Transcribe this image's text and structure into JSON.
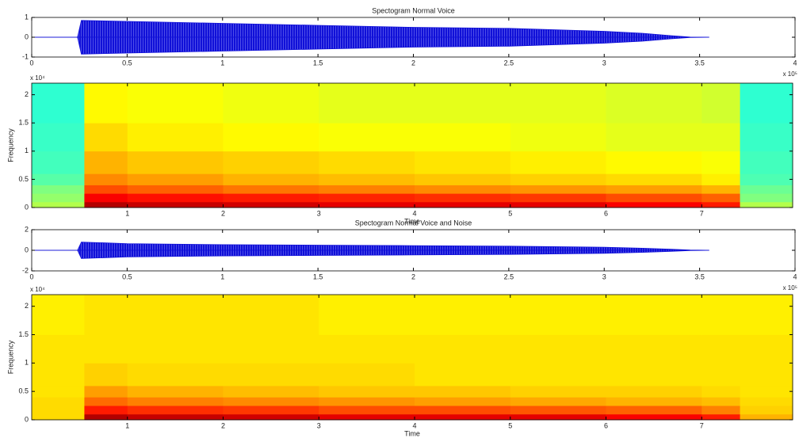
{
  "chart_data": [
    {
      "type": "waveform",
      "title": "Spectogram Normal Voice",
      "x_exponent_label": "x 10⁵",
      "x": [
        0,
        0.24,
        0.26,
        0.5,
        1,
        1.5,
        2,
        2.5,
        3,
        3.2,
        3.35,
        3.45,
        3.55
      ],
      "values": [
        0,
        0,
        0.85,
        0.8,
        0.7,
        0.6,
        0.5,
        0.45,
        0.3,
        0.2,
        0.08,
        0.01,
        0
      ],
      "color": "#1010d8",
      "xlim": [
        0,
        4
      ],
      "xticks": [
        0,
        0.5,
        1,
        1.5,
        2,
        2.5,
        3,
        3.5,
        4
      ],
      "ylim": [
        -1,
        1
      ],
      "yticks": [
        -1,
        0,
        1
      ],
      "grid": false
    },
    {
      "type": "spectrogram",
      "xlabel": "Time",
      "ylabel": "Frequency",
      "y_exponent_label": "x 10⁴",
      "x": [
        0,
        0.55,
        1,
        2,
        3,
        4,
        5,
        6,
        7,
        7.4,
        7.95
      ],
      "y": [
        0,
        0.1,
        0.25,
        0.4,
        0.6,
        1,
        1.5,
        2.205
      ],
      "values": [
        [
          0.55,
          0.95,
          0.93,
          0.92,
          0.9,
          0.9,
          0.9,
          0.88,
          0.85,
          0.55
        ],
        [
          0.52,
          0.88,
          0.86,
          0.85,
          0.84,
          0.83,
          0.82,
          0.8,
          0.78,
          0.5
        ],
        [
          0.5,
          0.8,
          0.78,
          0.76,
          0.75,
          0.74,
          0.73,
          0.72,
          0.7,
          0.48
        ],
        [
          0.46,
          0.74,
          0.72,
          0.7,
          0.69,
          0.68,
          0.67,
          0.66,
          0.64,
          0.45
        ],
        [
          0.44,
          0.7,
          0.68,
          0.67,
          0.66,
          0.65,
          0.64,
          0.63,
          0.62,
          0.44
        ],
        [
          0.43,
          0.66,
          0.64,
          0.63,
          0.62,
          0.62,
          0.61,
          0.6,
          0.6,
          0.43
        ],
        [
          0.42,
          0.63,
          0.62,
          0.61,
          0.6,
          0.6,
          0.6,
          0.59,
          0.58,
          0.42
        ]
      ],
      "clim": [
        0,
        1
      ],
      "colormap": "jet",
      "xlim": [
        0,
        7.95
      ],
      "xticks": [
        1,
        2,
        3,
        4,
        5,
        6,
        7
      ],
      "ylim": [
        0,
        2.205
      ],
      "yticks": [
        0,
        0.5,
        1,
        1.5,
        2
      ],
      "grid": false
    },
    {
      "type": "waveform",
      "title": "Spectogram Normal Voice and Noise",
      "x_exponent_label": "x 10⁵",
      "x": [
        0,
        0.24,
        0.26,
        0.5,
        1,
        1.5,
        2,
        2.5,
        3,
        3.2,
        3.35,
        3.45,
        3.55
      ],
      "values": [
        0,
        0,
        0.8,
        0.65,
        0.55,
        0.5,
        0.45,
        0.4,
        0.3,
        0.2,
        0.1,
        0.02,
        0
      ],
      "color": "#1010d8",
      "xlim": [
        0,
        4
      ],
      "xticks": [
        0,
        0.5,
        1,
        1.5,
        2,
        2.5,
        3,
        3.5,
        4
      ],
      "ylim": [
        -2,
        2
      ],
      "yticks": [
        -2,
        0,
        2
      ],
      "grid": false
    },
    {
      "type": "spectrogram",
      "xlabel": "Time",
      "ylabel": "Frequency",
      "y_exponent_label": "x 10⁴",
      "x": [
        0,
        0.55,
        1,
        2,
        3,
        4,
        5,
        6,
        7,
        7.4,
        7.95
      ],
      "y": [
        0,
        0.1,
        0.25,
        0.4,
        0.6,
        1,
        1.5,
        2.205
      ],
      "values": [
        [
          0.66,
          0.95,
          0.93,
          0.92,
          0.9,
          0.9,
          0.9,
          0.88,
          0.85,
          0.7
        ],
        [
          0.66,
          0.85,
          0.83,
          0.82,
          0.8,
          0.8,
          0.79,
          0.78,
          0.75,
          0.67
        ],
        [
          0.66,
          0.77,
          0.75,
          0.74,
          0.73,
          0.72,
          0.71,
          0.7,
          0.69,
          0.66
        ],
        [
          0.65,
          0.72,
          0.7,
          0.69,
          0.68,
          0.68,
          0.67,
          0.67,
          0.66,
          0.65
        ],
        [
          0.65,
          0.67,
          0.66,
          0.66,
          0.66,
          0.65,
          0.65,
          0.65,
          0.65,
          0.65
        ],
        [
          0.65,
          0.65,
          0.65,
          0.65,
          0.65,
          0.65,
          0.65,
          0.65,
          0.65,
          0.65
        ],
        [
          0.64,
          0.65,
          0.65,
          0.65,
          0.64,
          0.64,
          0.64,
          0.64,
          0.64,
          0.64
        ]
      ],
      "clim": [
        0,
        1
      ],
      "colormap": "jet",
      "xlim": [
        0,
        7.95
      ],
      "xticks": [
        1,
        2,
        3,
        4,
        5,
        6,
        7
      ],
      "ylim": [
        0,
        2.205
      ],
      "yticks": [
        0,
        0.5,
        1,
        1.5,
        2
      ],
      "grid": false
    }
  ]
}
